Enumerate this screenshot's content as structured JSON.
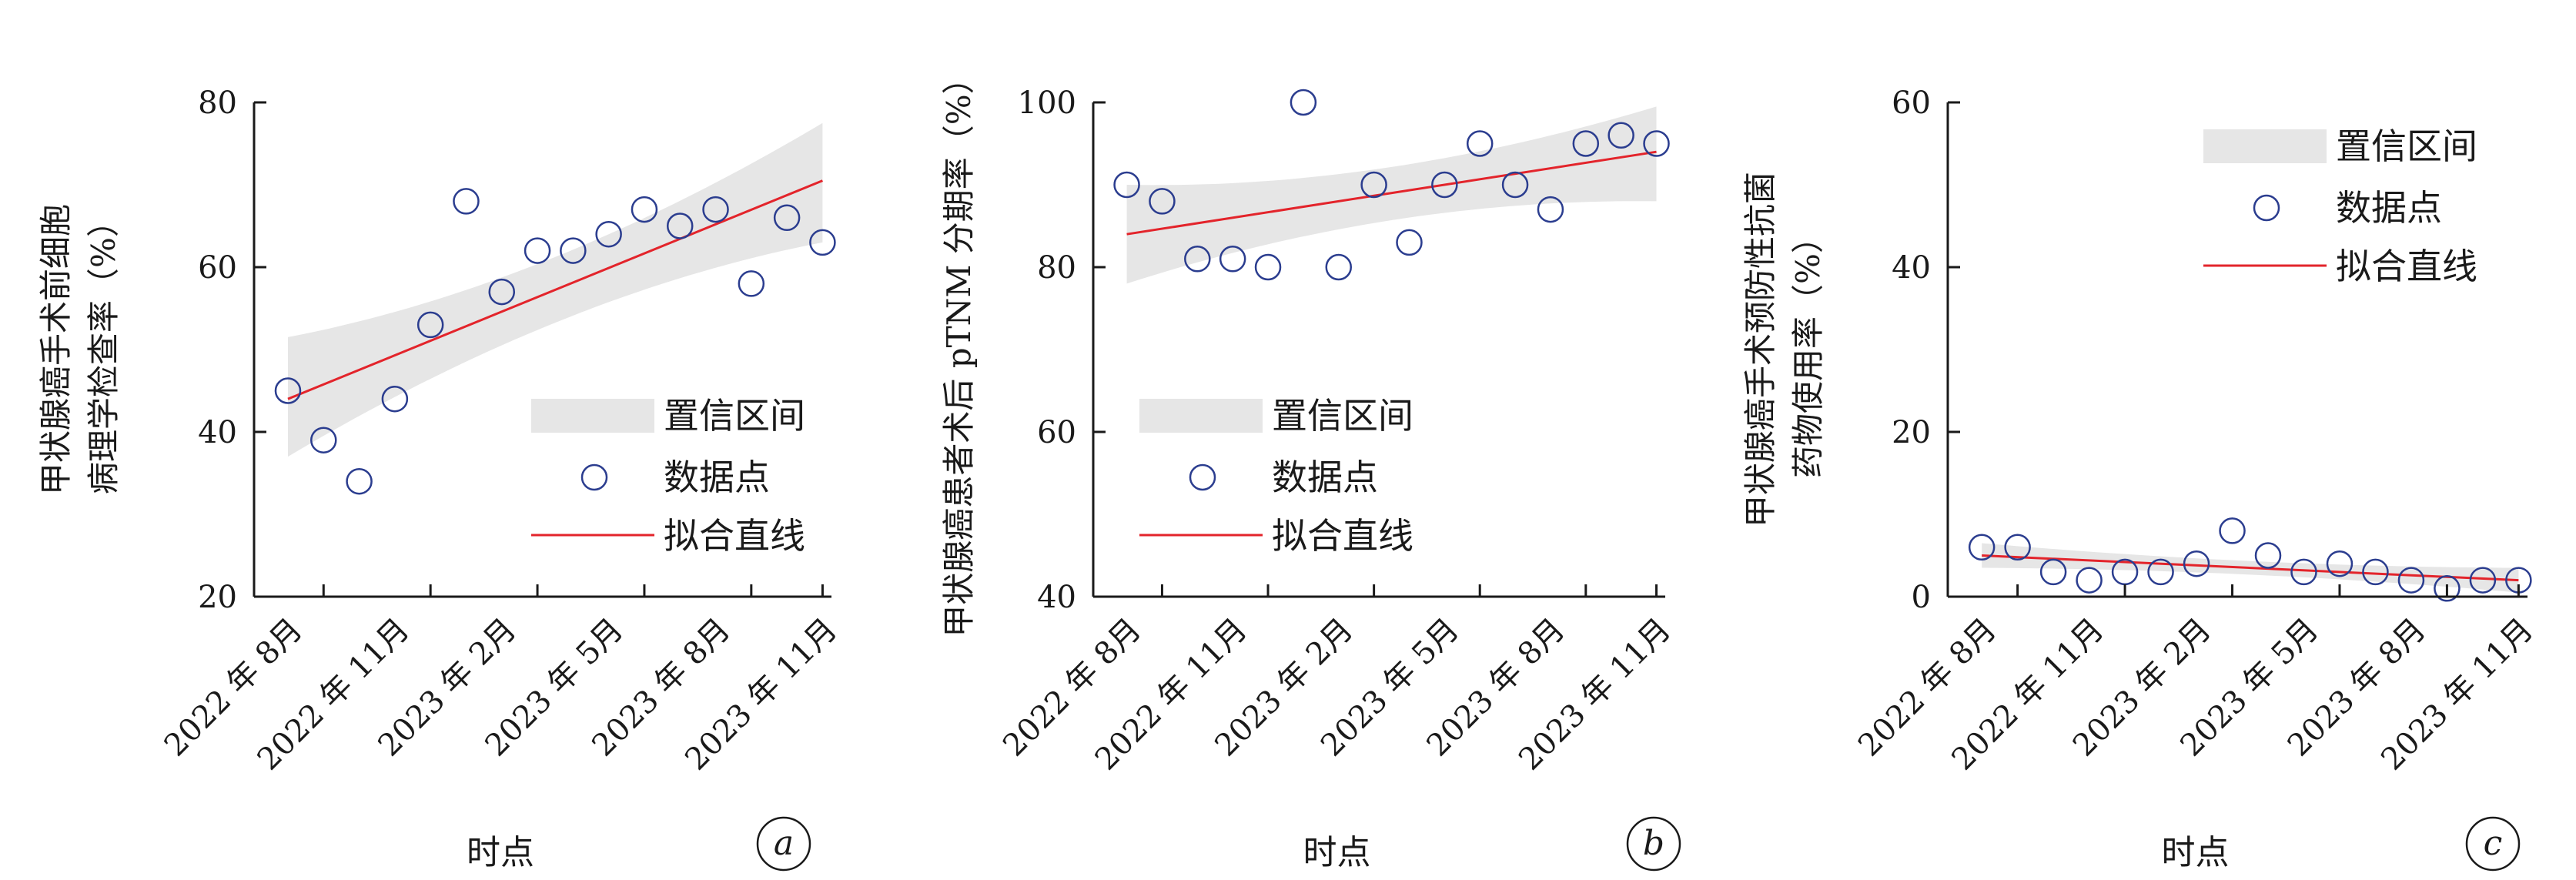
{
  "chart_data": [
    {
      "type": "scatter",
      "panel_letter": "a",
      "ylabel_lines": [
        "甲状腺癌手术前细胞",
        "病理学检查率（%）"
      ],
      "xlabel": "时点",
      "yticks": [
        20,
        40,
        60,
        80
      ],
      "ylim": [
        20,
        80
      ],
      "x_tick_labels": [
        "2022 年 8月",
        "2022 年 11月",
        "2023 年 2月",
        "2023 年 5月",
        "2023 年 8月",
        "2023 年 11月"
      ],
      "points": [
        45,
        39,
        34,
        44,
        53,
        68,
        57,
        62,
        62,
        64,
        67,
        65,
        67,
        58,
        66,
        63
      ],
      "fit_line": [
        44,
        70.5
      ],
      "ci_lower": [
        37,
        63
      ],
      "ci_upper": [
        51.5,
        77.5
      ],
      "legend": [
        "置信区间",
        "数据点",
        "拟合直线"
      ],
      "legend_position": "lower-right"
    },
    {
      "type": "scatter",
      "panel_letter": "b",
      "ylabel_lines": [
        "甲状腺癌患者术后 pTNM 分期率（%）"
      ],
      "xlabel": "时点",
      "yticks": [
        40,
        60,
        80,
        100
      ],
      "ylim": [
        40,
        100
      ],
      "x_tick_labels": [
        "2022 年 8月",
        "2022 年 11月",
        "2023 年 2月",
        "2023 年 5月",
        "2023 年 8月",
        "2023 年 11月"
      ],
      "points": [
        90,
        88,
        81,
        81,
        80,
        100,
        80,
        90,
        83,
        90,
        95,
        90,
        87,
        95,
        96,
        95
      ],
      "fit_line": [
        84,
        94
      ],
      "ci_lower": [
        78,
        88
      ],
      "ci_upper": [
        90,
        99.5
      ],
      "legend": [
        "置信区间",
        "数据点",
        "拟合直线"
      ],
      "legend_position": "lower-right"
    },
    {
      "type": "scatter",
      "panel_letter": "c",
      "ylabel_lines": [
        "甲状腺癌手术预防性抗菌",
        "药物使用率（%）"
      ],
      "xlabel": "时点",
      "yticks": [
        0,
        20,
        40,
        60
      ],
      "ylim": [
        0,
        60
      ],
      "x_tick_labels": [
        "2022 年 8月",
        "2022 年 11月",
        "2023 年 2月",
        "2023 年 5月",
        "2023 年 8月",
        "2023 年 11月"
      ],
      "points": [
        6,
        6,
        3,
        2,
        3,
        3,
        4,
        8,
        5,
        3,
        4,
        3,
        2,
        1,
        2,
        2
      ],
      "fit_line": [
        5,
        2
      ],
      "ci_lower": [
        3.5,
        0.5
      ],
      "ci_upper": [
        6.5,
        3.5
      ],
      "legend": [
        "置信区间",
        "数据点",
        "拟合直线"
      ],
      "legend_position": "top-right"
    }
  ],
  "colors": {
    "ci_band": "#e6e6e6",
    "marker": "#2b3d8f",
    "fit_line": "#e3242b",
    "axis": "#1a1a1a"
  }
}
